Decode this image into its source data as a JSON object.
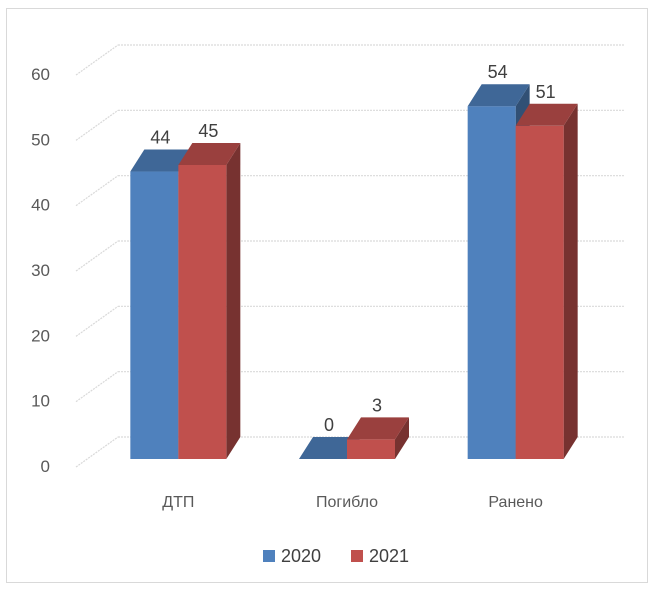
{
  "chart_data": {
    "type": "bar",
    "title": "",
    "xlabel": "",
    "ylabel": "",
    "categories": [
      "ДТП",
      "Погибло",
      "Ранено"
    ],
    "series": [
      {
        "name": "2020",
        "values": [
          44,
          0,
          54
        ],
        "color": "#4f81bd"
      },
      {
        "name": "2021",
        "values": [
          45,
          3,
          51
        ],
        "color": "#c0504d"
      }
    ],
    "ylim": [
      0,
      60
    ],
    "yticks": [
      "0",
      "10",
      "20",
      "30",
      "40",
      "50",
      "60"
    ],
    "grid": true,
    "legend": "bottom",
    "style": "3d-clustered-column"
  }
}
